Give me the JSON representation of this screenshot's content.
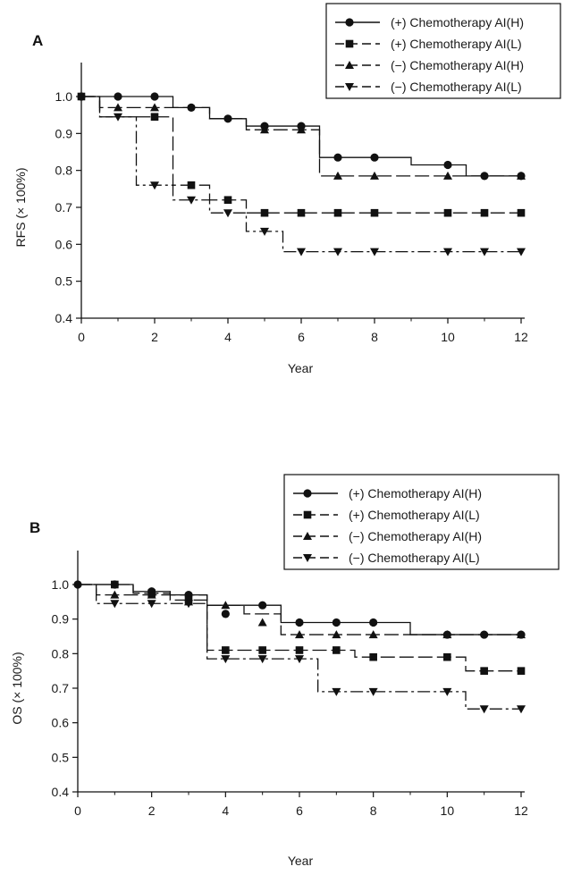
{
  "chart_data": [
    {
      "panel": "A",
      "type": "line",
      "xlabel": "Year",
      "ylabel": "RFS (× 100%)",
      "xlim": [
        0,
        12
      ],
      "ylim": [
        0.4,
        1.0
      ],
      "xticks": [
        "0",
        "2",
        "4",
        "6",
        "8",
        "10",
        "12"
      ],
      "yticks": [
        "0.4",
        "0.5",
        "0.6",
        "0.7",
        "0.8",
        "0.9",
        "1.0"
      ],
      "legend_position": "top-right",
      "grid": false,
      "series": [
        {
          "name": "(+) Chemotherapy AI(H)",
          "marker": "circle",
          "dash": "solid",
          "steps": [
            [
              0,
              1.0
            ],
            [
              2.5,
              0.97
            ],
            [
              3.5,
              0.94
            ],
            [
              4.5,
              0.92
            ],
            [
              6,
              0.92
            ],
            [
              6.5,
              0.835
            ],
            [
              9,
              0.815
            ],
            [
              10.5,
              0.785
            ],
            [
              12,
              0.785
            ]
          ],
          "points": [
            [
              0,
              1.0
            ],
            [
              1,
              1.0
            ],
            [
              2,
              1.0
            ],
            [
              3,
              0.97
            ],
            [
              4,
              0.94
            ],
            [
              5,
              0.92
            ],
            [
              6,
              0.92
            ],
            [
              7,
              0.835
            ],
            [
              8,
              0.835
            ],
            [
              10,
              0.815
            ],
            [
              11,
              0.785
            ],
            [
              12,
              0.785
            ]
          ]
        },
        {
          "name": "(+) Chemotherapy AI(L)",
          "marker": "square",
          "dash": "longdash",
          "steps": [
            [
              0,
              1.0
            ],
            [
              0.5,
              0.945
            ],
            [
              2.5,
              0.76
            ],
            [
              3.5,
              0.72
            ],
            [
              4.5,
              0.685
            ],
            [
              12,
              0.685
            ]
          ],
          "points": [
            [
              0,
              1.0
            ],
            [
              2,
              0.945
            ],
            [
              3,
              0.76
            ],
            [
              4,
              0.72
            ],
            [
              5,
              0.685
            ],
            [
              6,
              0.685
            ],
            [
              7,
              0.685
            ],
            [
              8,
              0.685
            ],
            [
              10,
              0.685
            ],
            [
              11,
              0.685
            ],
            [
              12,
              0.685
            ]
          ]
        },
        {
          "name": "(−) Chemotherapy AI(H)",
          "marker": "triangle-up",
          "dash": "longdash",
          "steps": [
            [
              0,
              1.0
            ],
            [
              0.5,
              0.97
            ],
            [
              2.5,
              0.97
            ],
            [
              3.5,
              0.94
            ],
            [
              4.5,
              0.91
            ],
            [
              6.5,
              0.785
            ],
            [
              12,
              0.785
            ]
          ],
          "points": [
            [
              1,
              0.97
            ],
            [
              2,
              0.97
            ],
            [
              5,
              0.91
            ],
            [
              6,
              0.91
            ],
            [
              7,
              0.785
            ],
            [
              8,
              0.785
            ],
            [
              10,
              0.785
            ],
            [
              12,
              0.785
            ]
          ]
        },
        {
          "name": "(−) Chemotherapy AI(L)",
          "marker": "triangle-down",
          "dash": "dashdot",
          "steps": [
            [
              0,
              1.0
            ],
            [
              0.5,
              0.945
            ],
            [
              1.5,
              0.76
            ],
            [
              2.5,
              0.72
            ],
            [
              3.5,
              0.685
            ],
            [
              4.5,
              0.635
            ],
            [
              5.5,
              0.58
            ],
            [
              12,
              0.58
            ]
          ],
          "points": [
            [
              1,
              0.945
            ],
            [
              2,
              0.76
            ],
            [
              3,
              0.72
            ],
            [
              4,
              0.685
            ],
            [
              5,
              0.635
            ],
            [
              6,
              0.58
            ],
            [
              7,
              0.58
            ],
            [
              8,
              0.58
            ],
            [
              10,
              0.58
            ],
            [
              11,
              0.58
            ],
            [
              12,
              0.58
            ]
          ]
        }
      ]
    },
    {
      "panel": "B",
      "type": "line",
      "xlabel": "Year",
      "ylabel": "OS (× 100%)",
      "xlim": [
        0,
        12
      ],
      "ylim": [
        0.4,
        1.0
      ],
      "xticks": [
        "0",
        "2",
        "4",
        "6",
        "8",
        "10",
        "12"
      ],
      "yticks": [
        "0.4",
        "0.5",
        "0.6",
        "0.7",
        "0.8",
        "0.9",
        "1.0"
      ],
      "legend_position": "top-right",
      "grid": false,
      "series": [
        {
          "name": "(+) Chemotherapy AI(H)",
          "marker": "circle",
          "dash": "solid",
          "steps": [
            [
              0,
              1.0
            ],
            [
              1.5,
              0.98
            ],
            [
              2.5,
              0.97
            ],
            [
              3.5,
              0.94
            ],
            [
              5.5,
              0.89
            ],
            [
              9,
              0.855
            ],
            [
              12,
              0.855
            ]
          ],
          "points": [
            [
              0,
              1.0
            ],
            [
              1,
              1.0
            ],
            [
              2,
              0.98
            ],
            [
              3,
              0.97
            ],
            [
              4,
              0.915
            ],
            [
              5,
              0.94
            ],
            [
              6,
              0.89
            ],
            [
              7,
              0.89
            ],
            [
              8,
              0.89
            ],
            [
              10,
              0.855
            ],
            [
              11,
              0.855
            ],
            [
              12,
              0.855
            ]
          ]
        },
        {
          "name": "(+) Chemotherapy AI(L)",
          "marker": "square",
          "dash": "longdash",
          "steps": [
            [
              0,
              1.0
            ],
            [
              1.5,
              0.975
            ],
            [
              2.5,
              0.955
            ],
            [
              3.5,
              0.81
            ],
            [
              7.5,
              0.79
            ],
            [
              10.5,
              0.75
            ],
            [
              12,
              0.75
            ]
          ],
          "points": [
            [
              1,
              1.0
            ],
            [
              2,
              0.975
            ],
            [
              3,
              0.955
            ],
            [
              4,
              0.81
            ],
            [
              5,
              0.81
            ],
            [
              6,
              0.81
            ],
            [
              7,
              0.81
            ],
            [
              8,
              0.79
            ],
            [
              10,
              0.79
            ],
            [
              11,
              0.75
            ],
            [
              12,
              0.75
            ]
          ]
        },
        {
          "name": "(−) Chemotherapy AI(H)",
          "marker": "triangle-up",
          "dash": "longdash",
          "steps": [
            [
              0,
              1.0
            ],
            [
              0.5,
              0.97
            ],
            [
              3.5,
              0.94
            ],
            [
              4.5,
              0.915
            ],
            [
              5.5,
              0.855
            ],
            [
              12,
              0.855
            ]
          ],
          "points": [
            [
              1,
              0.97
            ],
            [
              2,
              0.97
            ],
            [
              3,
              0.95
            ],
            [
              4,
              0.94
            ],
            [
              5,
              0.89
            ],
            [
              6,
              0.855
            ],
            [
              7,
              0.855
            ],
            [
              8,
              0.855
            ],
            [
              10,
              0.855
            ],
            [
              12,
              0.855
            ]
          ]
        },
        {
          "name": "(−) Chemotherapy AI(L)",
          "marker": "triangle-down",
          "dash": "dashdot",
          "steps": [
            [
              0,
              1.0
            ],
            [
              0.5,
              0.945
            ],
            [
              3.5,
              0.785
            ],
            [
              6.5,
              0.69
            ],
            [
              10.5,
              0.64
            ],
            [
              12,
              0.64
            ]
          ],
          "points": [
            [
              1,
              0.945
            ],
            [
              2,
              0.945
            ],
            [
              3,
              0.945
            ],
            [
              4,
              0.785
            ],
            [
              5,
              0.785
            ],
            [
              6,
              0.785
            ],
            [
              7,
              0.69
            ],
            [
              8,
              0.69
            ],
            [
              10,
              0.69
            ],
            [
              11,
              0.64
            ],
            [
              12,
              0.64
            ]
          ]
        }
      ]
    }
  ]
}
